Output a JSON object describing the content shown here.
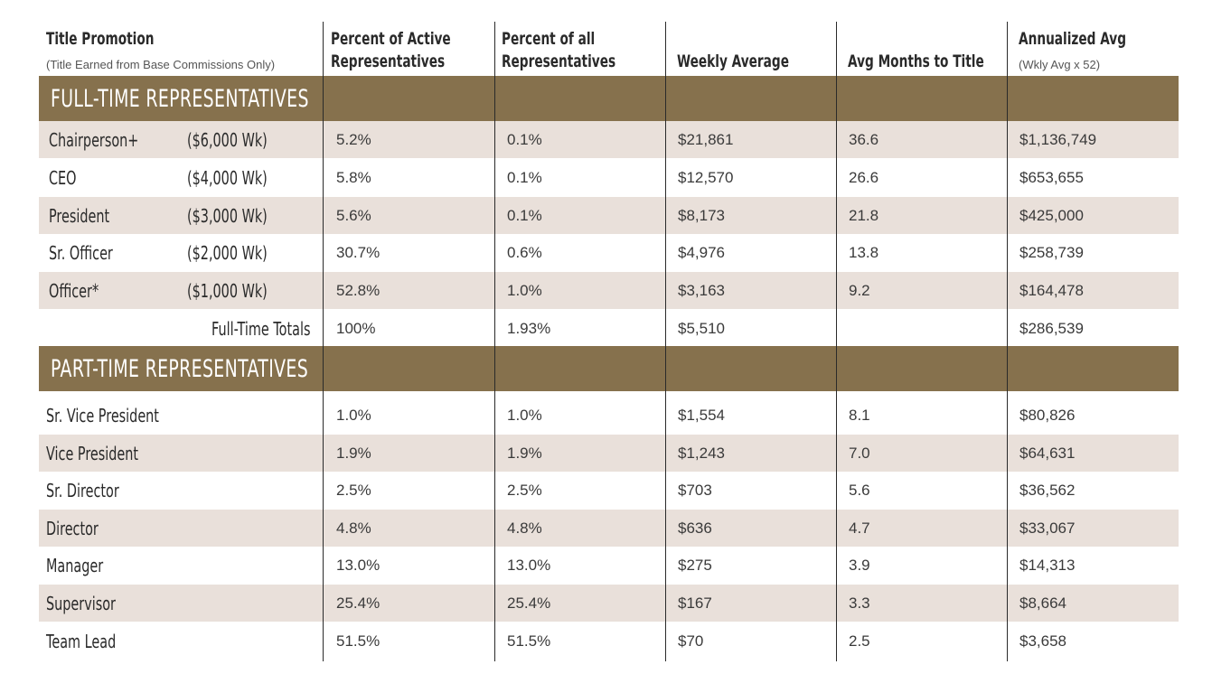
{
  "header": {
    "col1_title": "Title Promotion",
    "col1_sub": "(Title Earned from Base Commissions Only)",
    "col2_line1": "Percent of Active",
    "col2_line2": "Representatives",
    "col3_line1": "Percent of all",
    "col3_line2": "Representatives",
    "col4": "Weekly Average",
    "col5": "Avg Months to Title",
    "col6_title": "Annualized Avg",
    "col6_sub": "(Wkly Avg x 52)"
  },
  "full_time": {
    "section_title": "FULL-TIME REPRESENTATIVES",
    "rows": [
      {
        "title": "Chairperson+",
        "threshold": "($6,000 Wk)",
        "pct_active": "5.2%",
        "pct_all": "0.1%",
        "weekly": "$21,861",
        "months": "36.6",
        "annual": "$1,136,749"
      },
      {
        "title": "CEO",
        "threshold": "($4,000 Wk)",
        "pct_active": "5.8%",
        "pct_all": "0.1%",
        "weekly": "$12,570",
        "months": "26.6",
        "annual": "$653,655"
      },
      {
        "title": "President",
        "threshold": "($3,000 Wk)",
        "pct_active": "5.6%",
        "pct_all": "0.1%",
        "weekly": "$8,173",
        "months": "21.8",
        "annual": "$425,000"
      },
      {
        "title": "Sr. Officer",
        "threshold": "($2,000 Wk)",
        "pct_active": "30.7%",
        "pct_all": "0.6%",
        "weekly": "$4,976",
        "months": "13.8",
        "annual": "$258,739"
      },
      {
        "title": "Officer*",
        "threshold": "($1,000 Wk)",
        "pct_active": "52.8%",
        "pct_all": "1.0%",
        "weekly": "$3,163",
        "months": "9.2",
        "annual": "$164,478"
      }
    ],
    "totals": {
      "label": "Full-Time Totals",
      "pct_active": "100%",
      "pct_all": "1.93%",
      "weekly": "$5,510",
      "months": "",
      "annual": "$286,539"
    }
  },
  "part_time": {
    "section_title": "PART-TIME REPRESENTATIVES",
    "rows": [
      {
        "title": "Sr. Vice President",
        "pct_active": "1.0%",
        "pct_all": "1.0%",
        "weekly": "$1,554",
        "months": "8.1",
        "annual": "$80,826"
      },
      {
        "title": "Vice President",
        "pct_active": "1.9%",
        "pct_all": "1.9%",
        "weekly": "$1,243",
        "months": "7.0",
        "annual": "$64,631"
      },
      {
        "title": "Sr. Director",
        "pct_active": "2.5%",
        "pct_all": "2.5%",
        "weekly": "$703",
        "months": "5.6",
        "annual": "$36,562"
      },
      {
        "title": "Director",
        "pct_active": "4.8%",
        "pct_all": "4.8%",
        "weekly": "$636",
        "months": "4.7",
        "annual": "$33,067"
      },
      {
        "title": "Manager",
        "pct_active": "13.0%",
        "pct_all": "13.0%",
        "weekly": "$275",
        "months": "3.9",
        "annual": "$14,313"
      },
      {
        "title": "Supervisor",
        "pct_active": "25.4%",
        "pct_all": "25.4%",
        "weekly": "$167",
        "months": "3.3",
        "annual": "$8,664"
      },
      {
        "title": "Team Lead",
        "pct_active": "51.5%",
        "pct_all": "51.5%",
        "weekly": "$70",
        "months": "2.5",
        "annual": "$3,658"
      }
    ]
  },
  "colors": {
    "band": "#86714d",
    "row_shade": "#e9e0da"
  }
}
